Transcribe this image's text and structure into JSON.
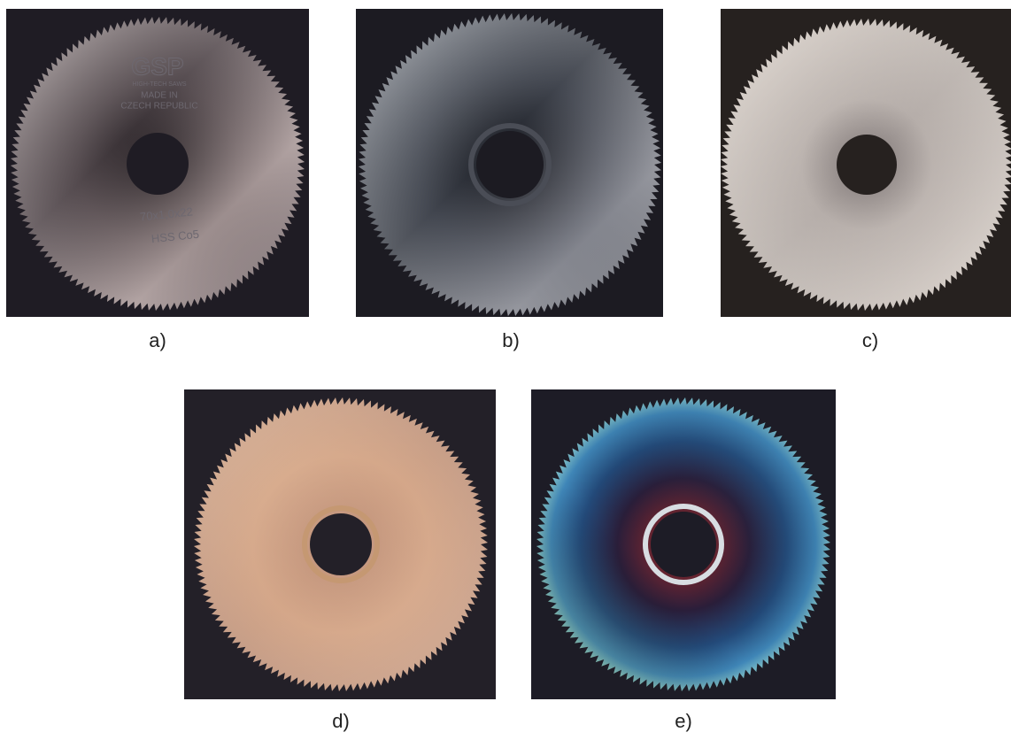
{
  "panels": [
    {
      "label": "a)",
      "texts": [
        "GSP",
        "HIGH-TECH SAWS",
        "MADE IN",
        "CZECH REPUBLIC",
        "70x1,0x22",
        "HSS Co5"
      ]
    },
    {
      "label": "b)"
    },
    {
      "label": "c)"
    },
    {
      "label": "d)"
    },
    {
      "label": "e)"
    }
  ]
}
